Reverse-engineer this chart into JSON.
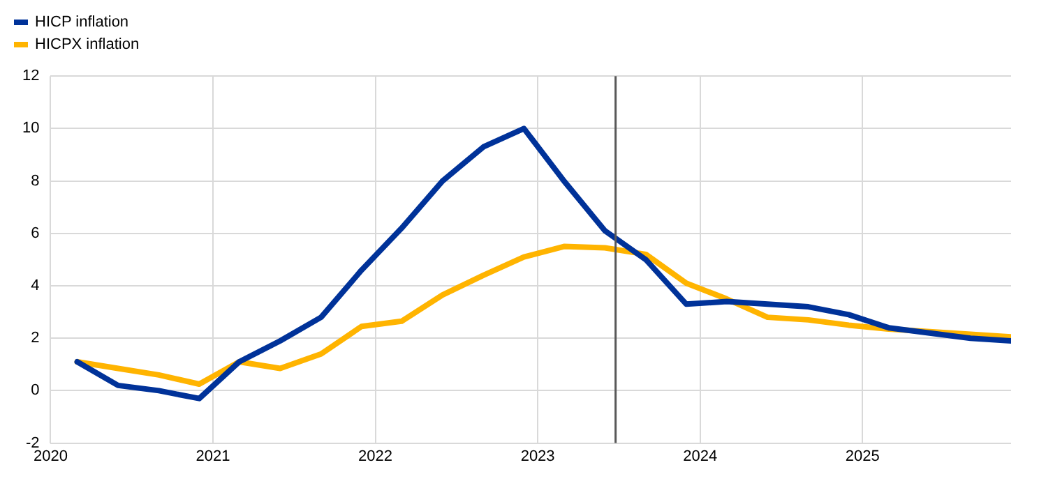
{
  "chart_data": {
    "type": "line",
    "x": [
      "2020-03-01",
      "2020-06-01",
      "2020-09-01",
      "2020-12-01",
      "2021-03-01",
      "2021-06-01",
      "2021-09-01",
      "2021-12-01",
      "2022-03-01",
      "2022-06-01",
      "2022-09-01",
      "2022-12-01",
      "2023-03-01",
      "2023-06-01",
      "2023-09-01",
      "2023-12-01",
      "2024-03-01",
      "2024-06-01",
      "2024-09-01",
      "2024-12-01",
      "2025-03-01",
      "2025-06-01",
      "2025-09-01",
      "2025-12-01"
    ],
    "series": [
      {
        "name": "HICP inflation",
        "color": "#003299",
        "values": [
          1.1,
          0.2,
          0.0,
          -0.3,
          1.1,
          1.9,
          2.8,
          4.6,
          6.2,
          8.0,
          9.3,
          10.0,
          8.0,
          6.1,
          5.0,
          3.3,
          3.4,
          3.3,
          3.2,
          2.9,
          2.4,
          2.2,
          2.0,
          1.9
        ]
      },
      {
        "name": "HICPX inflation",
        "color": "#ffb400",
        "values": [
          1.1,
          0.85,
          0.6,
          0.25,
          1.1,
          0.85,
          1.4,
          2.45,
          2.65,
          3.65,
          4.4,
          5.1,
          5.5,
          5.45,
          5.2,
          4.1,
          3.5,
          2.8,
          2.7,
          2.5,
          2.35,
          2.25,
          2.15,
          2.05
        ]
      }
    ],
    "xlim": [
      "2020-01-01",
      "2025-12-01"
    ],
    "xticks": [
      "2020",
      "2021",
      "2022",
      "2023",
      "2024",
      "2025"
    ],
    "ylim": [
      -2,
      12
    ],
    "yticks": [
      -2,
      0,
      2,
      4,
      6,
      8,
      10,
      12
    ],
    "ref_lines": [
      {
        "axis": "x",
        "value": "2023-06-25",
        "color": "#595959"
      }
    ],
    "grid": true,
    "legend": "top left",
    "marker": "none",
    "line_style": "solid"
  }
}
